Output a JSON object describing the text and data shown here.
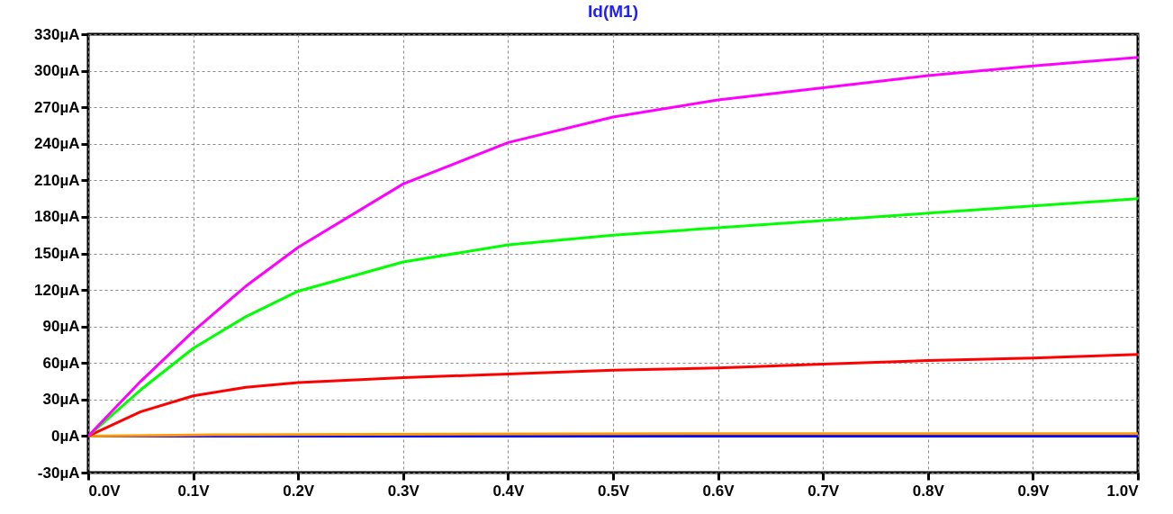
{
  "chart_data": {
    "type": "line",
    "title": "Id(M1)",
    "grid": true,
    "line_style": "solid",
    "xlim": [
      0,
      1
    ],
    "ylim": [
      -30,
      330
    ],
    "xticks": [
      {
        "value": 0,
        "label": "0.0V"
      },
      {
        "value": 0.1,
        "label": "0.1V"
      },
      {
        "value": 0.2,
        "label": "0.2V"
      },
      {
        "value": 0.3,
        "label": "0.3V"
      },
      {
        "value": 0.4,
        "label": "0.4V"
      },
      {
        "value": 0.5,
        "label": "0.5V"
      },
      {
        "value": 0.6,
        "label": "0.6V"
      },
      {
        "value": 0.7,
        "label": "0.7V"
      },
      {
        "value": 0.8,
        "label": "0.8V"
      },
      {
        "value": 0.9,
        "label": "0.9V"
      },
      {
        "value": 1,
        "label": "1.0V"
      }
    ],
    "yticks": [
      {
        "value": -30,
        "label": "-30µA"
      },
      {
        "value": 0,
        "label": "0µA"
      },
      {
        "value": 30,
        "label": "30µA"
      },
      {
        "value": 60,
        "label": "60µA"
      },
      {
        "value": 90,
        "label": "90µA"
      },
      {
        "value": 120,
        "label": "120µA"
      },
      {
        "value": 150,
        "label": "150µA"
      },
      {
        "value": 180,
        "label": "180µA"
      },
      {
        "value": 210,
        "label": "210µA"
      },
      {
        "value": 240,
        "label": "240µA"
      },
      {
        "value": 270,
        "label": "270µA"
      },
      {
        "value": 300,
        "label": "300µA"
      },
      {
        "value": 330,
        "label": "330µA"
      }
    ],
    "x": [
      0,
      0.05,
      0.1,
      0.15,
      0.2,
      0.3,
      0.4,
      0.5,
      0.6,
      0.7,
      0.8,
      0.9,
      1
    ],
    "series": [
      {
        "color": "#0000ff",
        "values": [
          0,
          0,
          0,
          0,
          0,
          0,
          0,
          0,
          0,
          0,
          0,
          0,
          0
        ]
      },
      {
        "color": "#ff9900",
        "x": [
          0,
          0.12,
          0.57,
          1
        ],
        "values": [
          0,
          1,
          2,
          2
        ]
      },
      {
        "color": "#ff0000",
        "values": [
          0,
          20,
          33,
          40,
          44,
          48,
          51,
          54,
          56,
          59,
          62,
          64,
          67
        ]
      },
      {
        "color": "#00ff00",
        "values": [
          0,
          38,
          72,
          98,
          119,
          143,
          157,
          165,
          171,
          177,
          183,
          189,
          195
        ]
      },
      {
        "color": "#ff00ff",
        "values": [
          0,
          45,
          86,
          123,
          155,
          207,
          241,
          262,
          276,
          286,
          296,
          304,
          311
        ]
      }
    ]
  }
}
